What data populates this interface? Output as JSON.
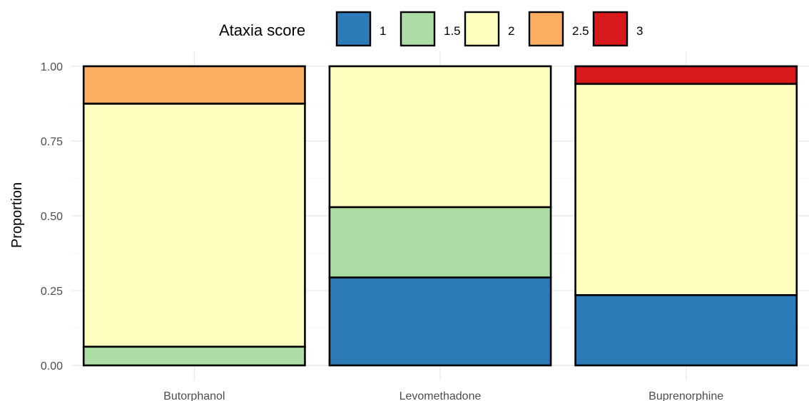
{
  "chart_data": {
    "type": "bar",
    "stacked": true,
    "ylabel": "Proportion",
    "xlabel": "",
    "ylim": [
      0,
      1
    ],
    "yticks": [
      "0.00",
      "0.25",
      "0.50",
      "0.75",
      "1.00"
    ],
    "grid": true,
    "legend_position": "top",
    "categories": [
      "Butorphanol",
      "Levomethadone",
      "Buprenorphine"
    ],
    "legend": {
      "title": "Ataxia score",
      "items": [
        "1",
        "1.5",
        "2",
        "2.5",
        "3"
      ]
    },
    "series": [
      {
        "name": "1",
        "color": "#2c7bb6",
        "values": [
          0.0,
          0.294,
          0.235
        ]
      },
      {
        "name": "1.5",
        "color": "#abdda4",
        "values": [
          0.0625,
          0.235,
          0.0
        ]
      },
      {
        "name": "2",
        "color": "#ffffbf",
        "values": [
          0.8125,
          0.471,
          0.706
        ]
      },
      {
        "name": "2.5",
        "color": "#fdae61",
        "values": [
          0.125,
          0.0,
          0.0
        ]
      },
      {
        "name": "3",
        "color": "#d7191c",
        "values": [
          0.0,
          0.0,
          0.059
        ]
      }
    ]
  }
}
